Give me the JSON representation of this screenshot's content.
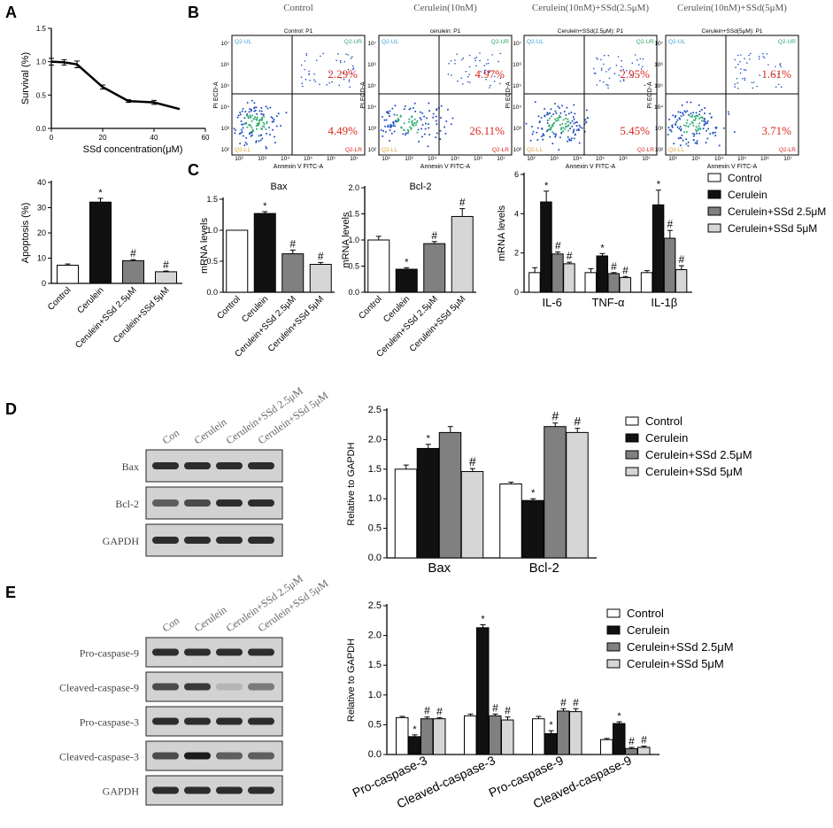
{
  "panels": {
    "A": "A",
    "B": "B",
    "C": "C",
    "D": "D",
    "E": "E"
  },
  "colors": {
    "control": "#ffffff",
    "cerulein": "#111111",
    "ssd25": "#808080",
    "ssd5": "#d6d6d6",
    "red": "#d9261c",
    "blue": "#1e4fbf"
  },
  "chart_data": [
    {
      "id": "A_survival",
      "type": "line",
      "xlabel": "SSd concentration(μM)",
      "ylabel": "Survival (%)",
      "xlim": [
        0,
        60
      ],
      "ylim": [
        0,
        1.5
      ],
      "xticks": [
        0,
        20,
        40,
        60
      ],
      "yticks": [
        0.0,
        0.5,
        1.0,
        1.5
      ],
      "ytick_labels": [
        "0.0",
        "0.5",
        "1.0",
        "1.5"
      ],
      "x": [
        0,
        5,
        10,
        20,
        30,
        40,
        50
      ],
      "y": [
        1.0,
        0.99,
        0.96,
        0.62,
        0.41,
        0.39,
        0.29
      ],
      "err": [
        0.05,
        0.04,
        0.05,
        0.03,
        0.02,
        0.03,
        0.0
      ]
    },
    {
      "id": "A_apoptosis",
      "type": "bar",
      "ylabel": "Apoptosis (%)",
      "ylim": [
        0,
        40
      ],
      "yticks": [
        0,
        10,
        20,
        30,
        40
      ],
      "categories": [
        "Control",
        "Cerulein",
        "Cerulein+SSd 2.5μM",
        "Cerulein+SSd 5μM"
      ],
      "values": [
        7.2,
        32.2,
        9.0,
        4.6
      ],
      "errors": [
        0.5,
        1.5,
        0.4,
        0.3
      ],
      "marks": [
        "",
        "*",
        "#",
        "#"
      ]
    },
    {
      "id": "B_flow",
      "type": "scatter",
      "titles": [
        "Control",
        "Cerulein(10nM)",
        "Cerulein(10nM)+SSd(2.5μM)",
        "Cerulein(10nM)+SSd(5μM)"
      ],
      "gate_titles": [
        "Control: P1",
        "cerulein: P1",
        "Cerulein+SSd(2.5μM): P1",
        "Cerulein+SSd(5μM): P1"
      ],
      "upper_right": [
        "2.29%",
        "4.97%",
        "2.95%",
        "1.61%"
      ],
      "lower_right": [
        "4.49%",
        "26.11%",
        "5.45%",
        "3.71%"
      ],
      "quadrants": {
        "ul": "Q2-UL",
        "ur": "Q2-UR",
        "ll": "Q2-LL",
        "lr": "Q2-LR"
      },
      "xlabel": "Annexin V FITC-A",
      "ylabel": "PI ECD-A",
      "ticks": [
        "10²",
        "10³",
        "10⁴",
        "10⁵",
        "10⁶",
        "10⁷"
      ]
    },
    {
      "id": "C_bax",
      "type": "bar",
      "title": "Bax",
      "ylabel": "mRNA levels",
      "ylim": [
        0,
        1.5
      ],
      "yticks": [
        0.0,
        0.5,
        1.0,
        1.5
      ],
      "ytick_labels": [
        "0.0",
        "0.5",
        "1.0",
        "1.5"
      ],
      "categories": [
        "Control",
        "Cerulein",
        "Cerulein+SSd 2.5μM",
        "Cerulein+SSd 5μM"
      ],
      "values": [
        1.0,
        1.27,
        0.62,
        0.45
      ],
      "errors": [
        0.0,
        0.03,
        0.06,
        0.03
      ],
      "marks": [
        "",
        "*",
        "#",
        "#"
      ]
    },
    {
      "id": "C_bcl2",
      "type": "bar",
      "title": "Bcl-2",
      "ylabel": "mRNA levels",
      "ylim": [
        0,
        2.0
      ],
      "yticks": [
        0.0,
        0.5,
        1.0,
        1.5,
        2.0
      ],
      "ytick_labels": [
        "0.0",
        "0.5",
        "1.0",
        "1.5",
        "2.0"
      ],
      "categories": [
        "Control",
        "Cerulein",
        "Cerulein+SSd 2.5μM",
        "Cerulein+SSd 5μM"
      ],
      "values": [
        1.0,
        0.44,
        0.93,
        1.45
      ],
      "errors": [
        0.07,
        0.03,
        0.04,
        0.15
      ],
      "marks": [
        "",
        "*",
        "#",
        "#"
      ]
    },
    {
      "id": "C_cytokines",
      "type": "bar",
      "ylabel": "mRNA levels",
      "ylim": [
        0,
        6
      ],
      "yticks": [
        0,
        2,
        4,
        6
      ],
      "categories": [
        "IL-6",
        "TNF-α",
        "IL-1β"
      ],
      "series": [
        {
          "name": "Control",
          "values": [
            1.0,
            1.0,
            1.0
          ],
          "errors": [
            0.25,
            0.2,
            0.1
          ],
          "marks": [
            "",
            "",
            ""
          ]
        },
        {
          "name": "Cerulein",
          "values": [
            4.6,
            1.85,
            4.45
          ],
          "errors": [
            0.55,
            0.12,
            0.75
          ],
          "marks": [
            "*",
            "*",
            "*"
          ]
        },
        {
          "name": "Cerulein+SSd 2.5μM",
          "values": [
            1.95,
            0.95,
            2.75
          ],
          "errors": [
            0.1,
            0.05,
            0.4
          ],
          "marks": [
            "#",
            "#",
            "#"
          ]
        },
        {
          "name": "Cerulein+SSd 5μM",
          "values": [
            1.45,
            0.75,
            1.15
          ],
          "errors": [
            0.08,
            0.05,
            0.2
          ],
          "marks": [
            "#",
            "#",
            "#"
          ]
        }
      ],
      "legend": [
        "Control",
        "Cerulein",
        "Cerulein+SSd 2.5μM",
        "Cerulein+SSd 5μM"
      ]
    },
    {
      "id": "D_quant",
      "type": "bar",
      "ylabel": "Relative to GAPDH",
      "ylim": [
        0,
        2.5
      ],
      "yticks": [
        0.0,
        0.5,
        1.0,
        1.5,
        2.0,
        2.5
      ],
      "ytick_labels": [
        "0.0",
        "0.5",
        "1.0",
        "1.5",
        "2.0",
        "2.5"
      ],
      "categories": [
        "Bax",
        "Bcl-2"
      ],
      "series": [
        {
          "name": "Control",
          "values": [
            1.5,
            1.25
          ],
          "errors": [
            0.07,
            0.03
          ],
          "marks": [
            "",
            ""
          ]
        },
        {
          "name": "Cerulein",
          "values": [
            1.85,
            0.97
          ],
          "errors": [
            0.07,
            0.03
          ],
          "marks": [
            "*",
            "*"
          ]
        },
        {
          "name": "Cerulein+SSd 2.5μM",
          "values": [
            2.12,
            2.22
          ],
          "errors": [
            0.1,
            0.06
          ],
          "marks": [
            "",
            "#"
          ]
        },
        {
          "name": "Cerulein+SSd 5μM",
          "values": [
            1.46,
            2.12
          ],
          "errors": [
            0.05,
            0.07
          ],
          "marks": [
            "#",
            "#"
          ]
        }
      ],
      "legend": [
        "Control",
        "Cerulein",
        "Cerulein+SSd 2.5μM",
        "Cerulein+SSd 5μM"
      ]
    },
    {
      "id": "E_quant",
      "type": "bar",
      "ylabel": "Relative to GAPDH",
      "ylim": [
        0,
        2.5
      ],
      "yticks": [
        0.0,
        0.5,
        1.0,
        1.5,
        2.0,
        2.5
      ],
      "ytick_labels": [
        "0.0",
        "0.5",
        "1.0",
        "1.5",
        "2.0",
        "2.5"
      ],
      "categories": [
        "Pro-caspase-3",
        "Cleaved-caspase-3",
        "Pro-caspase-9",
        "Cleaved-caspase-9"
      ],
      "series": [
        {
          "name": "Control",
          "values": [
            0.62,
            0.65,
            0.6,
            0.25
          ],
          "errors": [
            0.02,
            0.03,
            0.04,
            0.02
          ],
          "marks": [
            "",
            "",
            "",
            ""
          ]
        },
        {
          "name": "Cerulein",
          "values": [
            0.3,
            2.13,
            0.35,
            0.52
          ],
          "errors": [
            0.03,
            0.05,
            0.05,
            0.03
          ],
          "marks": [
            "*",
            "*",
            "*",
            "*"
          ]
        },
        {
          "name": "Cerulein+SSd 2.5μM",
          "values": [
            0.6,
            0.65,
            0.73,
            0.1
          ],
          "errors": [
            0.03,
            0.03,
            0.04,
            0.02
          ],
          "marks": [
            "#",
            "#",
            "#",
            "#"
          ]
        },
        {
          "name": "Cerulein+SSd 5μM",
          "values": [
            0.6,
            0.58,
            0.72,
            0.12
          ],
          "errors": [
            0.02,
            0.05,
            0.05,
            0.02
          ],
          "marks": [
            "#",
            "#",
            "#",
            "#"
          ]
        }
      ],
      "legend": [
        "Control",
        "Cerulein",
        "Cerulein+SSd 2.5μM",
        "Cerulein+SSd 5μM"
      ]
    }
  ],
  "blots": {
    "D": {
      "lanes": [
        "Con",
        "Cerulein",
        "Cerulein+SSd 2.5μM",
        "Cerulein+SSd 5μM"
      ],
      "rows": [
        "Bax",
        "Bcl-2",
        "GAPDH"
      ]
    },
    "E": {
      "lanes": [
        "Con",
        "Cerulein",
        "Cerulein+SSd 2.5μM",
        "Cerulein+SSd 5μM"
      ],
      "rows": [
        "Pro-caspase-9",
        "Cleaved-caspase-9",
        "Pro-caspase-3",
        "Cleaved-caspase-3",
        "GAPDH"
      ]
    }
  }
}
